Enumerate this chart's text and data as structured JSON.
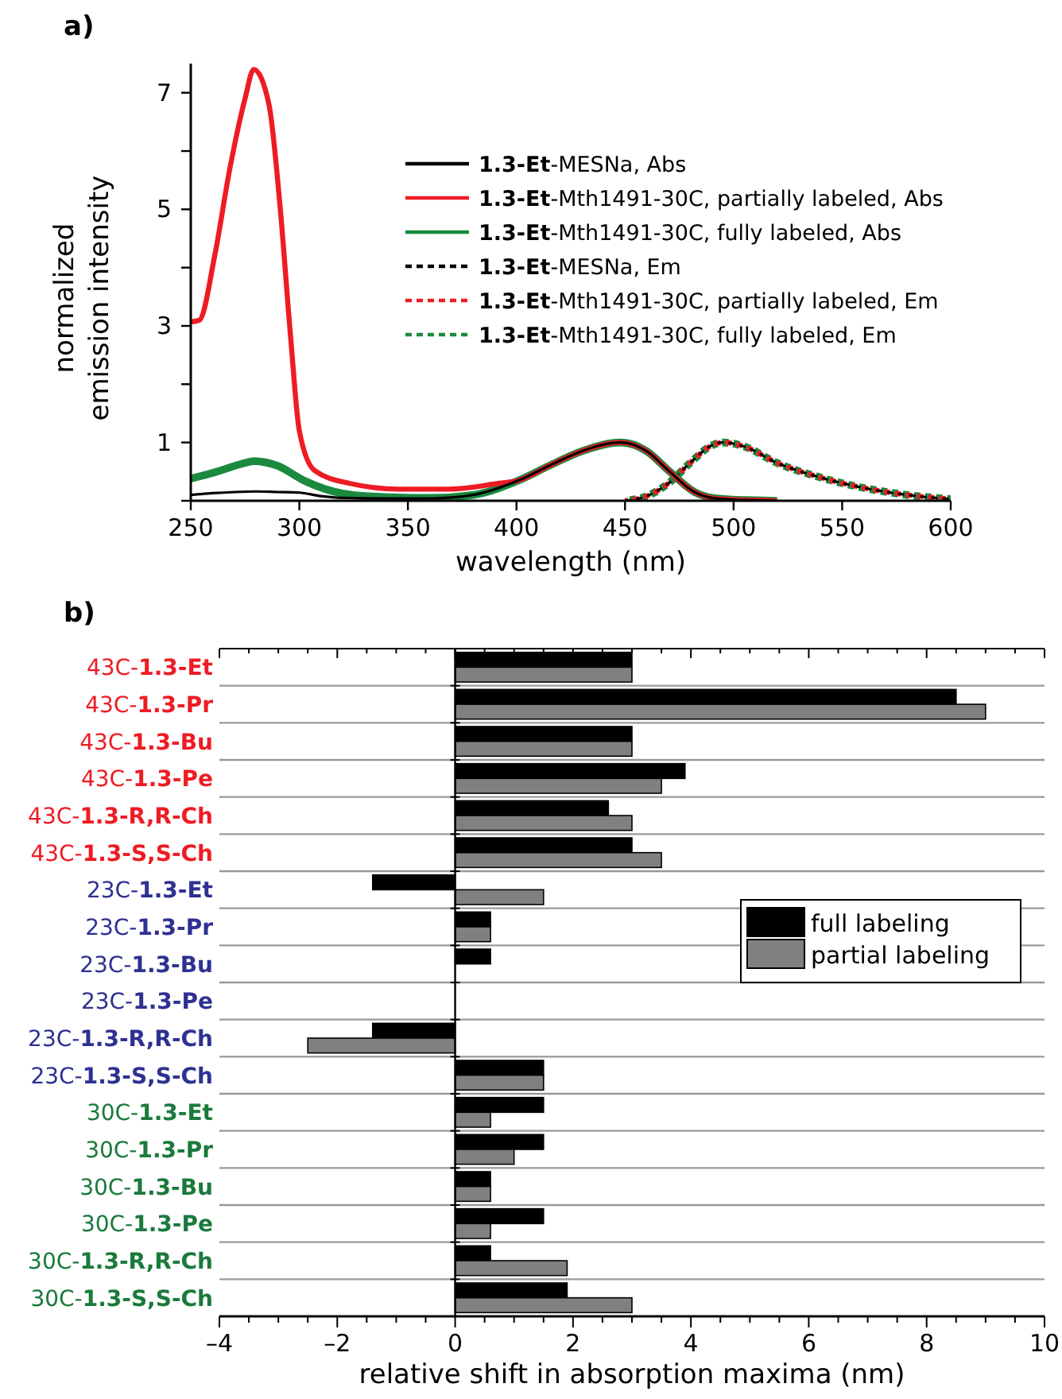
{
  "chart_data": [
    {
      "type": "line",
      "title": "a)",
      "xlabel": "wavelength (nm)",
      "ylabel": "normalized emission intensity",
      "xlim": [
        250,
        600
      ],
      "xticks": [
        250,
        300,
        350,
        400,
        450,
        500,
        550,
        600
      ],
      "ylim": [
        0,
        7.5
      ],
      "yticks": [
        {
          "value": 0,
          "label": null
        },
        1,
        {
          "value": 2,
          "label": null
        },
        3,
        {
          "value": 4,
          "label": null
        },
        5,
        {
          "value": 6,
          "label": null
        },
        7
      ],
      "legend": "top right",
      "series": [
        {
          "name": "1.3-Et-MESNa, Abs",
          "color": "#000000",
          "line_style": "solid",
          "x": [
            250,
            260,
            270,
            280,
            290,
            300,
            310,
            320,
            340,
            360,
            380,
            401,
            415,
            430,
            448,
            460,
            470,
            482,
            490,
            500,
            510,
            520
          ],
          "values": [
            0.1,
            0.13,
            0.15,
            0.16,
            0.15,
            0.14,
            0.08,
            0.05,
            0.04,
            0.04,
            0.1,
            0.35,
            0.6,
            0.85,
            1.0,
            0.85,
            0.52,
            0.15,
            0.05,
            0.02,
            0.01,
            0
          ]
        },
        {
          "name": "1.3-Et-Mth1491-30C, partially labeled, Abs",
          "color": "#ed1c24",
          "line_style": "solid",
          "x": [
            250,
            254,
            261,
            268,
            275,
            279,
            286,
            291,
            296,
            300,
            307,
            323,
            346,
            369,
            392,
            401,
            415,
            430,
            448,
            460,
            470,
            482,
            490,
            500,
            510,
            520
          ],
          "values": [
            3.07,
            3.1,
            4.2,
            5.7,
            6.9,
            7.4,
            6.8,
            5.1,
            2.8,
            1.2,
            0.52,
            0.3,
            0.2,
            0.2,
            0.3,
            0.35,
            0.6,
            0.85,
            1.0,
            0.85,
            0.52,
            0.15,
            0.05,
            0.02,
            0.01,
            0
          ]
        },
        {
          "name": "1.3-Et-Mth1491-30C, fully labeled, Abs",
          "color": "#1a8a3e",
          "line_style": "solid",
          "x": [
            250,
            262,
            275,
            279,
            290,
            302,
            312,
            330,
            360,
            380,
            401,
            415,
            430,
            448,
            460,
            470,
            482,
            490,
            500,
            510,
            520
          ],
          "values": [
            0.38,
            0.5,
            0.65,
            0.68,
            0.6,
            0.35,
            0.2,
            0.08,
            0.05,
            0.1,
            0.35,
            0.6,
            0.85,
            1.0,
            0.85,
            0.52,
            0.15,
            0.05,
            0.02,
            0.01,
            0
          ]
        },
        {
          "name": "1.3-Et-MESNa, Em",
          "color": "#000000",
          "line_style": "dashed",
          "x": [
            450,
            460,
            470,
            480,
            490,
            495,
            505,
            520,
            540,
            560,
            580,
            600
          ],
          "values": [
            0,
            0.08,
            0.3,
            0.65,
            0.95,
            1.0,
            0.93,
            0.65,
            0.4,
            0.22,
            0.1,
            0.03
          ]
        },
        {
          "name": "1.3-Et-Mth1491-30C, partially labeled, Em",
          "color": "#ed1c24",
          "line_style": "dashed",
          "x": [
            450,
            460,
            470,
            480,
            490,
            495,
            505,
            520,
            540,
            560,
            580,
            600
          ],
          "values": [
            0,
            0.08,
            0.3,
            0.65,
            0.95,
            1.0,
            0.93,
            0.65,
            0.4,
            0.22,
            0.1,
            0.03
          ]
        },
        {
          "name": "1.3-Et-Mth1491-30C, fully labeled, Em",
          "color": "#1a8a3e",
          "line_style": "dashed",
          "x": [
            450,
            460,
            470,
            480,
            490,
            495,
            505,
            520,
            540,
            560,
            580,
            600
          ],
          "values": [
            0,
            0.08,
            0.3,
            0.65,
            0.95,
            1.0,
            0.93,
            0.65,
            0.4,
            0.22,
            0.1,
            0.03
          ]
        }
      ]
    },
    {
      "type": "bar",
      "orientation": "horizontal",
      "title": "b)",
      "xlabel": "relative shift in absorption maxima (nm)",
      "categories": [
        "43C-1.3-Et",
        "43C-1.3-Pr",
        "43C-1.3-Bu",
        "43C-1.3-Pe",
        "43C-1.3-R,R-Ch",
        "43C-1.3-S,S-Ch",
        "23C-1.3-Et",
        "23C-1.3-Pr",
        "23C-1.3-Bu",
        "23C-1.3-Pe",
        "23C-1.3-R,R-Ch",
        "23C-1.3-S,S-Ch",
        "30C-1.3-Et",
        "30C-1.3-Pr",
        "30C-1.3-Bu",
        "30C-1.3-Pe",
        "30C-1.3-R,R-Ch",
        "30C-1.3-S,S-Ch"
      ],
      "xlim": [
        -4,
        10
      ],
      "xticks": [
        {
          "value": -4,
          "label": "–4"
        },
        {
          "value": -3.5,
          "label": null
        },
        {
          "value": -3,
          "label": null
        },
        {
          "value": -2.5,
          "label": null
        },
        {
          "value": -2,
          "label": "–2"
        },
        {
          "value": -1.5,
          "label": null
        },
        {
          "value": -1,
          "label": null
        },
        {
          "value": -0.5,
          "label": null
        },
        0,
        {
          "value": 0.5,
          "label": null
        },
        {
          "value": 1,
          "label": null
        },
        {
          "value": 1.5,
          "label": null
        },
        2,
        {
          "value": 2.5,
          "label": null
        },
        {
          "value": 3,
          "label": null
        },
        {
          "value": 3.5,
          "label": null
        },
        4,
        {
          "value": 4.5,
          "label": null
        },
        {
          "value": 5,
          "label": null
        },
        {
          "value": 5.5,
          "label": null
        },
        6,
        {
          "value": 6.5,
          "label": null
        },
        {
          "value": 7,
          "label": null
        },
        {
          "value": 7.5,
          "label": null
        },
        8,
        {
          "value": 8.5,
          "label": null
        },
        {
          "value": 9,
          "label": null
        },
        {
          "value": 9.5,
          "label": null
        },
        10
      ],
      "grid": "y",
      "legend": "right",
      "series": [
        {
          "name": "full labeling",
          "color": "#000000",
          "values": [
            3.0,
            8.5,
            3.0,
            3.9,
            2.6,
            3.0,
            -1.4,
            0.6,
            0.6,
            0,
            -1.4,
            1.5,
            1.5,
            1.5,
            0.6,
            1.5,
            0.6,
            1.9
          ]
        },
        {
          "name": "partial labeling",
          "color": "#808080",
          "values": [
            3.0,
            9.0,
            3.0,
            3.5,
            3.0,
            3.5,
            1.5,
            0.6,
            0,
            0,
            -2.5,
            1.5,
            0.6,
            1.0,
            0.6,
            0.6,
            1.9,
            3.0
          ]
        }
      ]
    }
  ]
}
